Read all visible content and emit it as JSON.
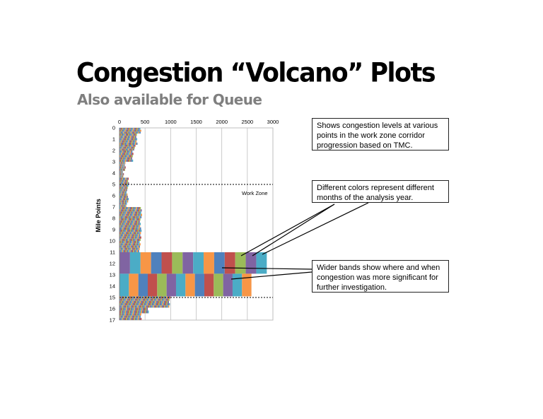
{
  "slide": {
    "title": "Congestion “Volcano” Plots",
    "subtitle": "Also available for Queue"
  },
  "callouts": {
    "tmc": "Shows congestion levels at various points in the work zone corridor progression based on TMC.",
    "colors": "Different colors represent different months of the analysis year.",
    "bands": "Wider bands show where and when congestion was more significant for further investigation."
  },
  "chart_data": {
    "type": "bar",
    "orientation": "horizontal-stacked",
    "title": "",
    "xlabel": "",
    "ylabel": "Mile Points",
    "xlim": [
      0,
      3000
    ],
    "ylim": [
      0,
      17
    ],
    "x_ticks": [
      0,
      500,
      1000,
      1500,
      2000,
      2500,
      3000
    ],
    "y_ticks": [
      0,
      1,
      2,
      3,
      4,
      5,
      6,
      7,
      8,
      9,
      10,
      11,
      12,
      13,
      14,
      15,
      16,
      17
    ],
    "grid": "vertical",
    "annotation": "Work Zone",
    "work_zone_boundaries": [
      5,
      15
    ],
    "series_colors": [
      "#4f81bd",
      "#c0504d",
      "#9bbb59",
      "#8064a2",
      "#4bacc6",
      "#f79646"
    ],
    "rows": [
      {
        "start": 0.0,
        "end": 0.5,
        "total": 420
      },
      {
        "start": 0.5,
        "end": 1.5,
        "total": 340
      },
      {
        "start": 1.5,
        "end": 2.0,
        "total": 300
      },
      {
        "start": 2.0,
        "end": 3.0,
        "total": 260
      },
      {
        "start": 3.0,
        "end": 3.8,
        "total": 110
      },
      {
        "start": 3.8,
        "end": 4.4,
        "total": 80
      },
      {
        "start": 4.4,
        "end": 5.2,
        "total": 180
      },
      {
        "start": 5.2,
        "end": 6.0,
        "total": 150
      },
      {
        "start": 6.0,
        "end": 6.6,
        "total": 170
      },
      {
        "start": 6.6,
        "end": 7.0,
        "total": 140
      },
      {
        "start": 7.0,
        "end": 8.0,
        "total": 430
      },
      {
        "start": 8.0,
        "end": 9.0,
        "total": 410
      },
      {
        "start": 9.0,
        "end": 10.0,
        "total": 420
      },
      {
        "start": 10.0,
        "end": 10.6,
        "total": 400
      },
      {
        "start": 10.6,
        "end": 11.0,
        "total": 390
      },
      {
        "start": 11.0,
        "end": 12.9,
        "total": 2880
      },
      {
        "start": 12.9,
        "end": 14.9,
        "total": 2580
      },
      {
        "start": 14.9,
        "end": 15.9,
        "total": 980
      },
      {
        "start": 15.9,
        "end": 16.4,
        "total": 560
      },
      {
        "start": 16.4,
        "end": 17.0,
        "total": 420
      }
    ]
  }
}
